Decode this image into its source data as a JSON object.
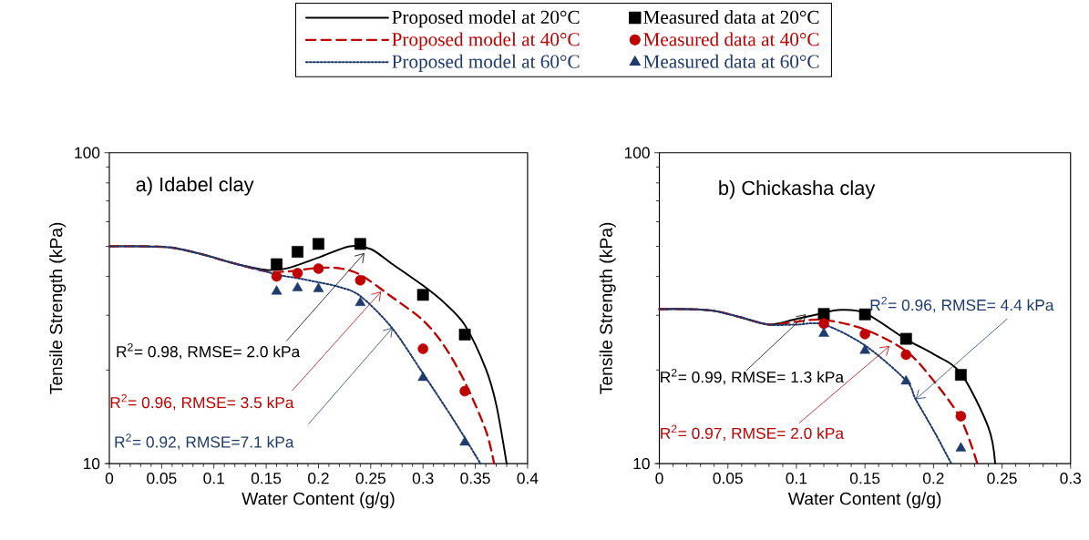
{
  "chart_data": [
    {
      "type": "line",
      "title": "a) Idabel clay",
      "xlabel": "Water Content (g/g)",
      "ylabel": "Tensile Strength (kPa)",
      "log": "y",
      "legend": "top",
      "xlim": [
        0,
        0.4
      ],
      "xticks": [
        0,
        0.05,
        0.1,
        0.15,
        0.2,
        0.25,
        0.3,
        0.35,
        0.4
      ],
      "ylim": [
        10,
        100
      ],
      "yticks": [
        10,
        100
      ],
      "series": [
        {
          "name": "Proposed model at 20°C",
          "color": "#000000",
          "line_style": "solid",
          "x": [
            0,
            0.03,
            0.06,
            0.09,
            0.12,
            0.15,
            0.17,
            0.2,
            0.23,
            0.25,
            0.27,
            0.3,
            0.32,
            0.34,
            0.36,
            0.37,
            0.38
          ],
          "values": [
            50,
            50,
            49.5,
            47,
            44,
            42,
            42.5,
            46,
            50,
            49,
            44,
            37.4,
            33,
            27.9,
            20.2,
            15.5,
            10
          ]
        },
        {
          "type": "scatter",
          "name": "Measured data at 20°C",
          "color": "#000000",
          "marker": "square",
          "x": [
            0.16,
            0.18,
            0.2,
            0.24,
            0.3,
            0.34
          ],
          "values": [
            43.8,
            48,
            50.9,
            50.9,
            34.9,
            26
          ]
        },
        {
          "name": "Proposed model at 40°C",
          "color": "#c00000",
          "line_style": "dashed",
          "x": [
            0,
            0.03,
            0.06,
            0.09,
            0.12,
            0.15,
            0.17,
            0.2,
            0.22,
            0.24,
            0.27,
            0.3,
            0.32,
            0.34,
            0.36,
            0.368
          ],
          "values": [
            50,
            50,
            49.5,
            47,
            44,
            41.5,
            41.5,
            42.6,
            42.5,
            40.5,
            34.4,
            28.9,
            24,
            18.3,
            12.8,
            10
          ]
        },
        {
          "type": "scatter",
          "name": "Measured data at 40°C",
          "color": "#c00000",
          "marker": "circle",
          "x": [
            0.16,
            0.18,
            0.2,
            0.24,
            0.3,
            0.34
          ],
          "values": [
            40,
            41,
            42.4,
            38.9,
            23.4,
            17.1
          ]
        },
        {
          "name": "Proposed model at 60°C",
          "color": "#1f3b6e",
          "line_style": "dotted",
          "x": [
            0,
            0.03,
            0.06,
            0.09,
            0.12,
            0.15,
            0.16,
            0.18,
            0.2,
            0.22,
            0.24,
            0.27,
            0.3,
            0.33,
            0.355
          ],
          "values": [
            50,
            50,
            49.5,
            47,
            44,
            41.5,
            40.5,
            39.5,
            38.3,
            37,
            34.6,
            27.4,
            19.5,
            13.7,
            10
          ]
        },
        {
          "type": "scatter",
          "name": "Measured data at 60°C",
          "color": "#1f3b6e",
          "marker": "triangle",
          "x": [
            0.16,
            0.18,
            0.2,
            0.24,
            0.3,
            0.34
          ],
          "values": [
            35.8,
            36.7,
            36.5,
            32.9,
            18.9,
            11.7
          ]
        }
      ],
      "annotations": [
        {
          "text": "R$^{2}$= 0.98, RMSE= 2.0 kPa",
          "x": 0.244,
          "y": 47.6
        },
        {
          "text": "R$^{2}$= 0.96, RMSE= 3.5 kPa",
          "x": 0.26,
          "y": 35.8
        },
        {
          "text": "R$^{2}$= 0.92, RMSE=7.1 kPa",
          "x": 0.271,
          "y": 27.4
        }
      ]
    },
    {
      "type": "line",
      "title": "b) Chickasha clay",
      "xlabel": "Water Content (g/g)",
      "ylabel": "Tensile Strength (kPa)",
      "log": "y",
      "xlim": [
        0,
        0.3
      ],
      "xticks": [
        0,
        0.05,
        0.1,
        0.15,
        0.2,
        0.25,
        0.3
      ],
      "ylim": [
        10,
        100
      ],
      "yticks": [
        10,
        100
      ],
      "series": [
        {
          "color": "#000000",
          "line_style": "solid",
          "x": [
            0,
            0.02,
            0.04,
            0.06,
            0.08,
            0.1,
            0.12,
            0.13,
            0.15,
            0.18,
            0.2,
            0.22,
            0.24,
            0.245
          ],
          "values": [
            31.4,
            31.4,
            31,
            29.5,
            28,
            29.2,
            30.5,
            31.2,
            30.5,
            25.1,
            22.5,
            19.5,
            13.1,
            10
          ]
        },
        {
          "type": "scatter",
          "color": "#000000",
          "marker": "square",
          "x": [
            0.12,
            0.15,
            0.18,
            0.22
          ],
          "values": [
            30.3,
            30.2,
            25.2,
            19.3
          ]
        },
        {
          "color": "#c00000",
          "line_style": "dashed",
          "x": [
            0,
            0.02,
            0.04,
            0.06,
            0.08,
            0.1,
            0.12,
            0.15,
            0.18,
            0.2,
            0.22,
            0.232
          ],
          "values": [
            31.4,
            31.4,
            31,
            29.5,
            28,
            28.6,
            29,
            27,
            23,
            18.5,
            13.9,
            10
          ]
        },
        {
          "type": "scatter",
          "color": "#c00000",
          "marker": "circle",
          "x": [
            0.12,
            0.15,
            0.18,
            0.22
          ],
          "values": [
            28.2,
            26.1,
            22.4,
            14.2
          ]
        },
        {
          "color": "#1f3b6e",
          "line_style": "dotted",
          "x": [
            0,
            0.02,
            0.04,
            0.06,
            0.08,
            0.1,
            0.12,
            0.15,
            0.18,
            0.187,
            0.2,
            0.213
          ],
          "values": [
            31.4,
            31.4,
            31,
            29.5,
            28,
            28,
            28,
            24,
            18.5,
            16.1,
            12.8,
            10
          ]
        },
        {
          "type": "scatter",
          "color": "#1f3b6e",
          "marker": "triangle",
          "x": [
            0.12,
            0.15,
            0.18,
            0.22
          ],
          "values": [
            26.2,
            23.1,
            18.4,
            11.2
          ]
        }
      ],
      "annotations": [
        {
          "text": "R$^{2}$= 0.99, RMSE= 1.3 kPa",
          "x": 0.107,
          "y": 30.2
        },
        {
          "text": "R$^{2}$= 0.97, RMSE= 2.0 kPa",
          "x": 0.168,
          "y": 23.9
        },
        {
          "text": "R$^{2}$= 0.96, RMSE= 4.4 kPa",
          "x": 0.187,
          "y": 16.1
        }
      ]
    }
  ]
}
